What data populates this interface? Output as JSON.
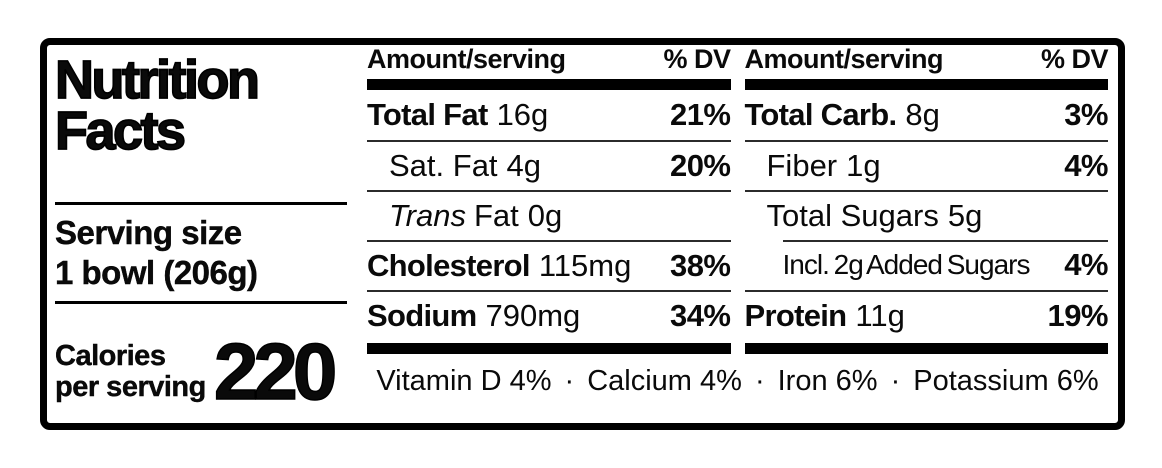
{
  "label": {
    "title_line1": "Nutrition",
    "title_line2": "Facts",
    "serving": {
      "label": "Serving size",
      "value": "1 bowl (206g)"
    },
    "calories": {
      "label_line1": "Calories",
      "label_line2": "per serving",
      "value": "220"
    }
  },
  "columns": [
    {
      "header": {
        "amount": "Amount/serving",
        "dv": "% DV"
      },
      "rows": [
        {
          "name": "Total Fat",
          "amount": "16g",
          "dv": "21%"
        },
        {
          "name": "Sat. Fat",
          "amount": "4g",
          "dv": "20%"
        },
        {
          "name_italic": "Trans",
          "name": "Fat",
          "amount": "0g",
          "dv": ""
        },
        {
          "name": "Cholesterol",
          "amount": "115mg",
          "dv": "38%"
        },
        {
          "name": "Sodium",
          "amount": "790mg",
          "dv": "34%"
        }
      ]
    },
    {
      "header": {
        "amount": "Amount/serving",
        "dv": "% DV"
      },
      "rows": [
        {
          "name": "Total Carb.",
          "amount": "8g",
          "dv": "3%"
        },
        {
          "name": "Fiber",
          "amount": "1g",
          "dv": "4%"
        },
        {
          "name": "Total Sugars",
          "amount": "5g",
          "dv": ""
        },
        {
          "name": "Incl. 2g Added Sugars",
          "amount": "",
          "dv": "4%"
        },
        {
          "name": "Protein",
          "amount": "11g",
          "dv": "19%"
        }
      ]
    }
  ],
  "micronutrients": [
    {
      "name": "Vitamin D",
      "dv": "4%"
    },
    {
      "name": "Calcium",
      "dv": "4%"
    },
    {
      "name": "Iron",
      "dv": "6%"
    },
    {
      "name": "Potassium",
      "dv": "6%"
    }
  ],
  "separator": "·",
  "colors": {
    "ink": "#000000",
    "paper": "#ffffff"
  }
}
